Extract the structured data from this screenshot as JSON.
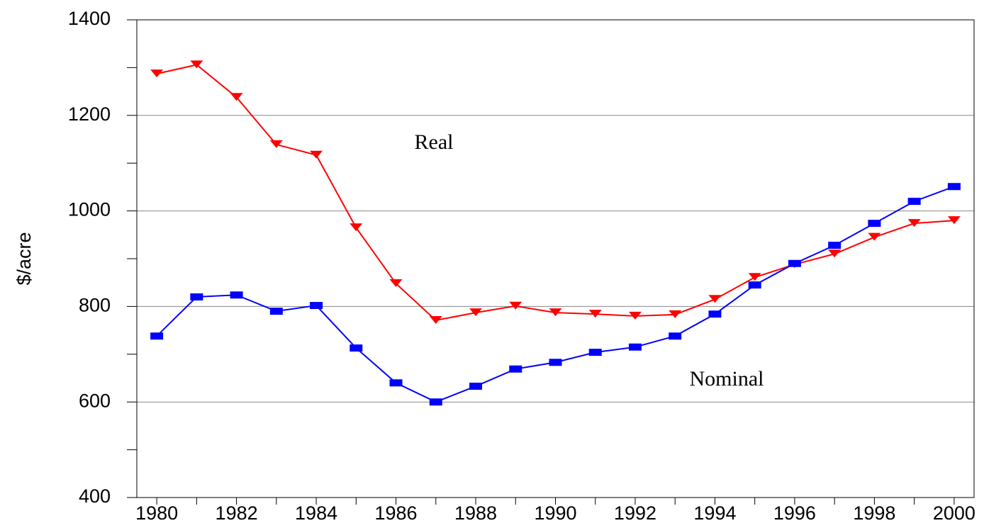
{
  "chart_data": {
    "type": "line",
    "y_label": "$/acre",
    "x": [
      1980,
      1981,
      1982,
      1983,
      1984,
      1985,
      1986,
      1987,
      1988,
      1989,
      1990,
      1991,
      1992,
      1993,
      1994,
      1995,
      1996,
      1997,
      1998,
      1999,
      2000
    ],
    "series": [
      {
        "name": "Real",
        "color": "#ff0000",
        "marker": "triangle-down",
        "values": [
          1287,
          1306,
          1238,
          1139,
          1117,
          965,
          848,
          771,
          787,
          801,
          787,
          784,
          780,
          783,
          815,
          861,
          888,
          910,
          945,
          974,
          980
        ]
      },
      {
        "name": "Nominal",
        "color": "#0000ff",
        "marker": "square",
        "values": [
          738,
          820,
          824,
          790,
          802,
          713,
          640,
          600,
          633,
          669,
          683,
          704,
          715,
          738,
          784,
          845,
          890,
          928,
          974,
          1020,
          1051
        ]
      }
    ],
    "xlim": [
      1979.5,
      2000.5
    ],
    "xticks": [
      1980,
      1982,
      1984,
      1986,
      1988,
      1990,
      1992,
      1994,
      1996,
      1998,
      2000
    ],
    "xminorticks": [
      1981,
      1983,
      1985,
      1987,
      1989,
      1991,
      1993,
      1995,
      1997,
      1999
    ],
    "ylim": [
      400,
      1400
    ],
    "yticks": [
      400,
      600,
      800,
      1000,
      1200,
      1400
    ],
    "yminorticks": [
      500,
      700,
      900,
      1100,
      1300
    ],
    "grid": true
  }
}
